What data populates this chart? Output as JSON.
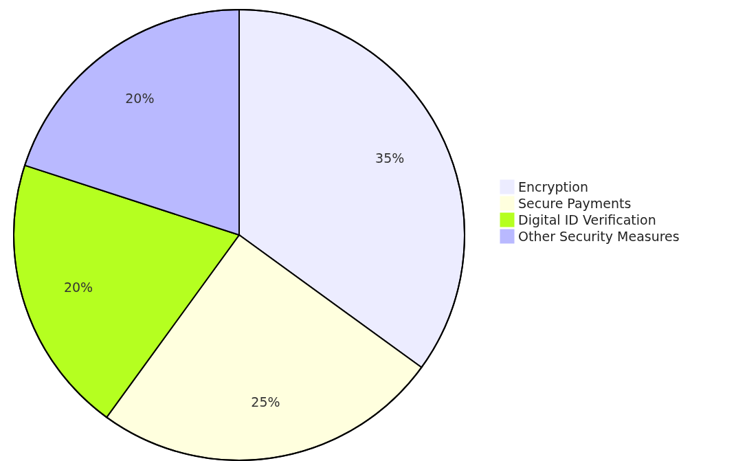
{
  "chart_data": {
    "type": "pie",
    "categories": [
      "Encryption",
      "Secure Payments",
      "Digital ID Verification",
      "Other Security Measures"
    ],
    "values": [
      35,
      25,
      20,
      20
    ],
    "colors": [
      "#ececff",
      "#ffffde",
      "#b5ff20",
      "#b9b9ff"
    ],
    "value_labels": [
      "35%",
      "25%",
      "20%",
      "20%"
    ],
    "legend": "right"
  }
}
